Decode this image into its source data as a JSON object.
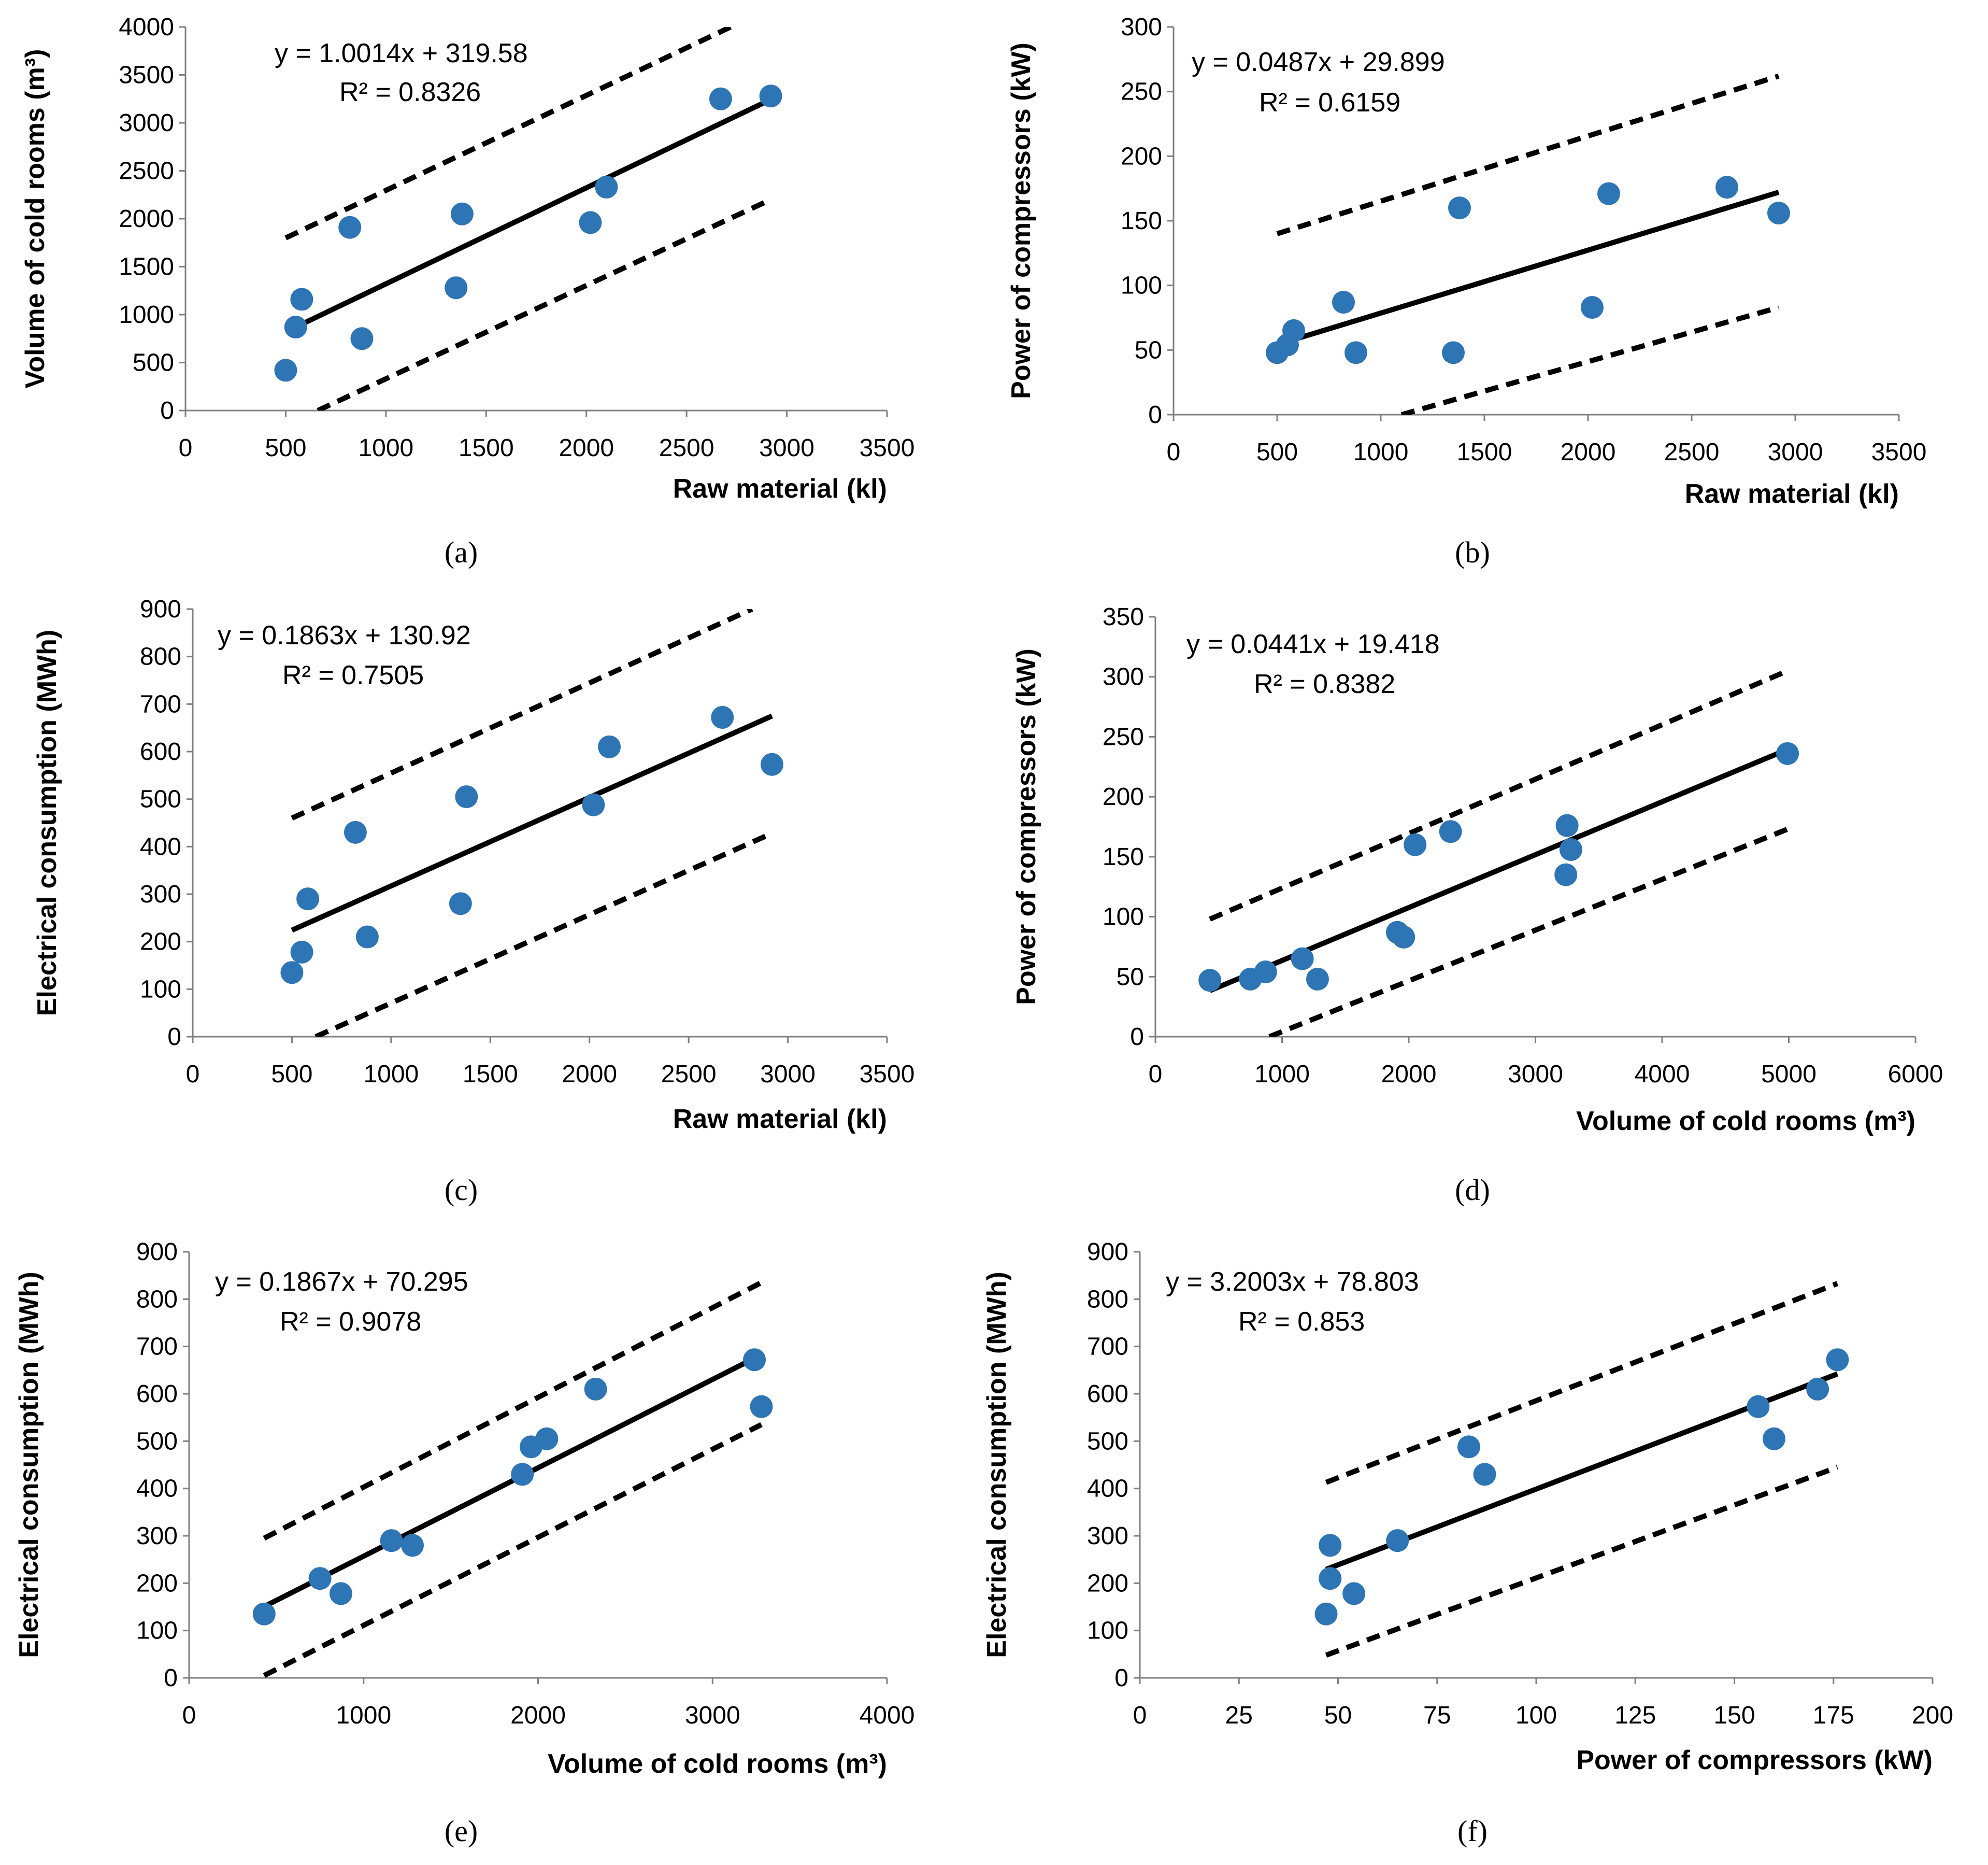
{
  "colors": {
    "point": "#2E75B6",
    "line": "#000000",
    "axis": "#7F7F7F"
  },
  "chart_data": [
    {
      "panel": "(a)",
      "type": "scatter",
      "xlabel": "Raw material (kl)",
      "ylabel": "Volume of cold rooms (m³)",
      "xlim": [
        0,
        3500
      ],
      "ylim": [
        0,
        4000
      ],
      "xticks": [
        0,
        500,
        1000,
        1500,
        2000,
        2500,
        3000,
        3500
      ],
      "yticks": [
        0,
        500,
        1000,
        1500,
        2000,
        2500,
        3000,
        3500,
        4000
      ],
      "equation": "y = 1.0014x + 319.58",
      "r2": "R² = 0.8326",
      "x": [
        500,
        550,
        580,
        820,
        880,
        1350,
        1380,
        2020,
        2100,
        2670,
        2920
      ],
      "y": [
        420,
        870,
        1160,
        1910,
        750,
        1280,
        2050,
        1960,
        2330,
        3250,
        3280
      ],
      "fit": {
        "slope": 1.0014,
        "intercept": 319.58,
        "x_range": [
          500,
          2920
        ]
      },
      "upper": {
        "x": [
          500,
          2720
        ],
        "y": [
          1800,
          4000
        ]
      },
      "lower": {
        "x": [
          660,
          2920
        ],
        "y": [
          0,
          2200
        ]
      }
    },
    {
      "panel": "(b)",
      "type": "scatter",
      "xlabel": "Raw material (kl)",
      "ylabel": "Power of compressors (kW)",
      "xlim": [
        0,
        3500
      ],
      "ylim": [
        0,
        300
      ],
      "xticks": [
        0,
        500,
        1000,
        1500,
        2000,
        2500,
        3000,
        3500
      ],
      "yticks": [
        0,
        50,
        100,
        150,
        200,
        250,
        300
      ],
      "equation": "y = 0.0487x + 29.899",
      "r2": "R² = 0.6159",
      "x": [
        500,
        550,
        580,
        820,
        880,
        1350,
        1380,
        2020,
        2100,
        2670,
        2920
      ],
      "y": [
        48,
        54,
        65,
        87,
        48,
        48,
        160,
        83,
        171,
        176,
        156
      ],
      "fit": {
        "slope": 0.0487,
        "intercept": 29.899,
        "x_range": [
          500,
          2920
        ]
      },
      "upper": {
        "x": [
          500,
          2920
        ],
        "y": [
          140,
          262
        ]
      },
      "lower": {
        "x": [
          1100,
          2920
        ],
        "y": [
          0,
          83
        ]
      }
    },
    {
      "panel": "(c)",
      "type": "scatter",
      "xlabel": "Raw material (kl)",
      "ylabel": "Electrical consumption (MWh)",
      "xlim": [
        0,
        3500
      ],
      "ylim": [
        0,
        900
      ],
      "xticks": [
        0,
        500,
        1000,
        1500,
        2000,
        2500,
        3000,
        3500
      ],
      "yticks": [
        0,
        100,
        200,
        300,
        400,
        500,
        600,
        700,
        800,
        900
      ],
      "equation": "y = 0.1863x + 130.92",
      "r2": "R² = 0.7505",
      "x": [
        500,
        550,
        580,
        820,
        880,
        1350,
        1380,
        2020,
        2100,
        2670,
        2920
      ],
      "y": [
        135,
        178,
        290,
        430,
        210,
        280,
        505,
        488,
        610,
        672,
        573
      ],
      "fit": {
        "slope": 0.1863,
        "intercept": 130.92,
        "x_range": [
          500,
          2920
        ]
      },
      "upper": {
        "x": [
          500,
          2820
        ],
        "y": [
          460,
          900
        ]
      },
      "lower": {
        "x": [
          620,
          2920
        ],
        "y": [
          0,
          428
        ]
      }
    },
    {
      "panel": "(d)",
      "type": "scatter",
      "xlabel": "Volume of cold rooms (m³)",
      "ylabel": "Power of compressors (kW)",
      "xlim": [
        0,
        6000
      ],
      "ylim": [
        0,
        350
      ],
      "xticks": [
        0,
        1000,
        2000,
        3000,
        4000,
        5000,
        6000
      ],
      "yticks": [
        0,
        50,
        100,
        150,
        200,
        250,
        300,
        350
      ],
      "equation": "y = 0.0441x + 19.418",
      "r2": "R² = 0.8382",
      "x": [
        430,
        750,
        870,
        1160,
        1280,
        1910,
        1960,
        2050,
        2330,
        3240,
        3250,
        3280,
        4990
      ],
      "y": [
        47,
        48,
        54,
        65,
        48,
        87,
        83,
        160,
        171,
        135,
        176,
        156,
        236
      ],
      "fit": {
        "slope": 0.0441,
        "intercept": 19.418,
        "x_range": [
          430,
          4990
        ]
      },
      "upper": {
        "x": [
          430,
          4990
        ],
        "y": [
          98,
          305
        ]
      },
      "lower": {
        "x": [
          900,
          4990
        ],
        "y": [
          0,
          173
        ]
      }
    },
    {
      "panel": "(e)",
      "type": "scatter",
      "xlabel": "Volume of cold rooms (m³)",
      "ylabel": "Electrical consumption (MWh)",
      "xlim": [
        0,
        4000
      ],
      "ylim": [
        0,
        900
      ],
      "xticks": [
        0,
        1000,
        2000,
        3000,
        4000
      ],
      "yticks": [
        0,
        100,
        200,
        300,
        400,
        500,
        600,
        700,
        800,
        900
      ],
      "equation": "y = 0.1867x + 70.295",
      "r2": "R² = 0.9078",
      "x": [
        430,
        750,
        870,
        1160,
        1280,
        1910,
        1960,
        2050,
        2330,
        3240,
        3280
      ],
      "y": [
        135,
        210,
        178,
        290,
        280,
        430,
        488,
        505,
        610,
        672,
        573
      ],
      "fit": {
        "slope": 0.1867,
        "intercept": 70.295,
        "x_range": [
          430,
          3280
        ]
      },
      "upper": {
        "x": [
          430,
          3280
        ],
        "y": [
          295,
          835
        ]
      },
      "lower": {
        "x": [
          430,
          3280
        ],
        "y": [
          5,
          535
        ]
      }
    },
    {
      "panel": "(f)",
      "type": "scatter",
      "xlabel": "Power of compressors (kW)",
      "ylabel": "Electrical consumption (MWh)",
      "xlim": [
        0,
        200
      ],
      "ylim": [
        0,
        900
      ],
      "xticks": [
        0,
        25,
        50,
        75,
        100,
        125,
        150,
        175,
        200
      ],
      "yticks": [
        0,
        100,
        200,
        300,
        400,
        500,
        600,
        700,
        800,
        900
      ],
      "equation": "y = 3.2003x + 78.803",
      "r2": "R² = 0.853",
      "x": [
        47,
        48,
        48,
        54,
        65,
        83,
        87,
        156,
        160,
        171,
        176
      ],
      "y": [
        135,
        210,
        280,
        178,
        290,
        488,
        430,
        573,
        505,
        610,
        672
      ],
      "fit": {
        "slope": 3.2003,
        "intercept": 78.803,
        "x_range": [
          47,
          176
        ]
      },
      "upper": {
        "x": [
          47,
          176
        ],
        "y": [
          413,
          833
        ]
      },
      "lower": {
        "x": [
          47,
          176
        ],
        "y": [
          48,
          445
        ]
      }
    }
  ]
}
